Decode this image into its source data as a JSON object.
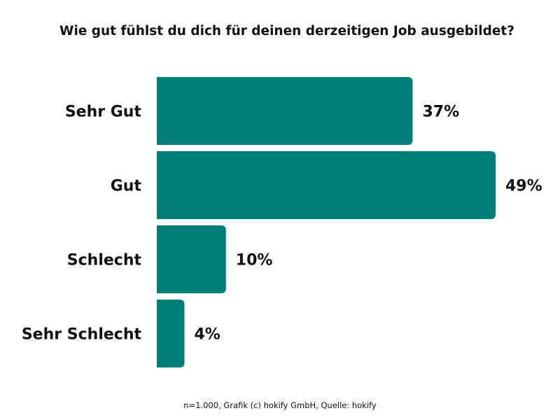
{
  "chart_data": {
    "type": "bar",
    "orientation": "horizontal",
    "title": "Wie gut fühlst du dich für deinen derzeitigen Job ausgebildet?",
    "categories": [
      "Sehr Gut",
      "Gut",
      "Schlecht",
      "Sehr Schlecht"
    ],
    "values": [
      37,
      49,
      10,
      4
    ],
    "value_labels": [
      "37%",
      "49%",
      "10%",
      "4%"
    ],
    "xlim": [
      0,
      49
    ],
    "grid": false,
    "bar_color": "#007e7a",
    "footnote": "n=1.000, Grafik (c) hokify GmbH, Quelle: hokify"
  }
}
